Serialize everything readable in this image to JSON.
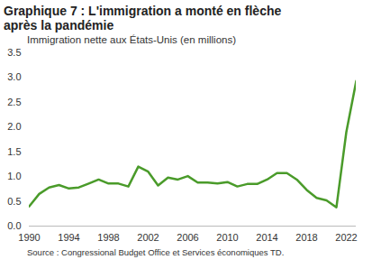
{
  "chart_data": {
    "type": "line",
    "title": "Graphique 7 : L'immigration a monté en flèche après la pandémie",
    "subtitle": "Immigration nette aux États-Unis (en millions)",
    "caption": "Source : Congressional Budget Office et Services économiques TD.",
    "x": [
      1990,
      1991,
      1992,
      1993,
      1994,
      1995,
      1996,
      1997,
      1998,
      1999,
      2000,
      2001,
      2002,
      2003,
      2004,
      2005,
      2006,
      2007,
      2008,
      2009,
      2010,
      2011,
      2012,
      2013,
      2014,
      2015,
      2016,
      2017,
      2018,
      2019,
      2020,
      2021,
      2022,
      2023
    ],
    "values": [
      0.4,
      0.65,
      0.78,
      0.83,
      0.76,
      0.78,
      0.86,
      0.94,
      0.86,
      0.86,
      0.8,
      1.2,
      1.1,
      0.82,
      0.98,
      0.94,
      1.01,
      0.88,
      0.88,
      0.86,
      0.89,
      0.8,
      0.85,
      0.85,
      0.94,
      1.07,
      1.07,
      0.94,
      0.73,
      0.57,
      0.52,
      0.38,
      1.9,
      2.93
    ],
    "color": "#4a9b2a",
    "xlim": [
      1990,
      2023
    ],
    "xticks": [
      1990,
      1994,
      1998,
      2002,
      2006,
      2010,
      2014,
      2018,
      2022
    ],
    "ylim": [
      0,
      3.5
    ],
    "yticks": [
      {
        "value": 0,
        "label": "0.0"
      },
      0.5,
      {
        "value": 1,
        "label": "1.0"
      },
      1.5,
      {
        "value": 2,
        "label": "2.0"
      },
      2.5,
      {
        "value": 3,
        "label": "3.0"
      },
      3.5
    ],
    "grid": false
  }
}
